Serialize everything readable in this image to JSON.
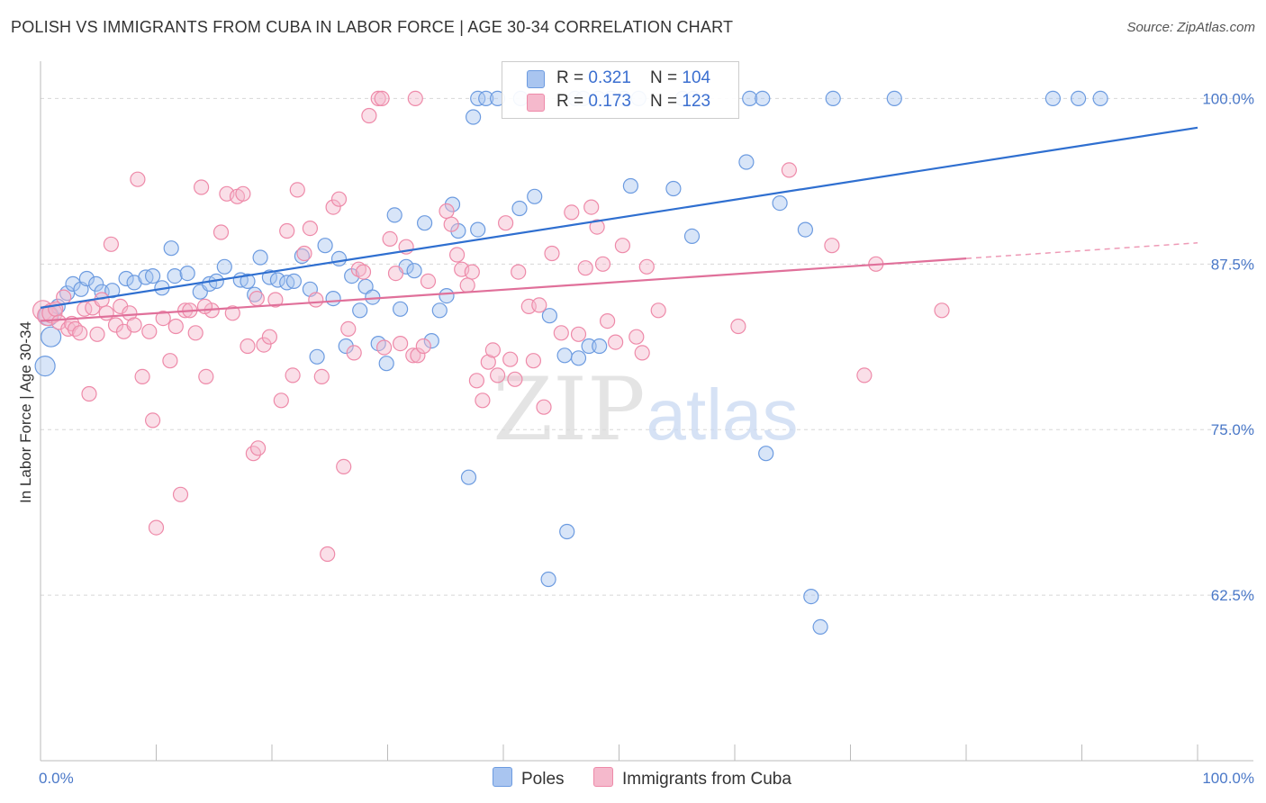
{
  "title": "POLISH VS IMMIGRANTS FROM CUBA IN LABOR FORCE | AGE 30-34 CORRELATION CHART",
  "source": "Source: ZipAtlas.com",
  "watermark": {
    "zip": "ZIP",
    "atlas": "atlas"
  },
  "legend_stats": [
    {
      "r_label": "R = ",
      "r_value": "0.321",
      "n_label": "N = ",
      "n_value": "104"
    },
    {
      "r_label": "R = ",
      "r_value": "0.173",
      "n_label": "N = ",
      "n_value": "123"
    }
  ],
  "chart_data": {
    "type": "scatter",
    "ylabel": "In Labor Force | Age 30-34",
    "xlim": [
      0,
      100
    ],
    "ylim": [
      50,
      102
    ],
    "x_tick_labels": [
      "0.0%",
      "100.0%"
    ],
    "y_ticks": [
      62.5,
      75.0,
      87.5,
      100.0
    ],
    "y_tick_labels": [
      "62.5%",
      "75.0%",
      "87.5%",
      "100.0%"
    ],
    "grid": "horizontal dashed",
    "legend_placement": "top-center",
    "series": [
      {
        "name": "Poles",
        "color": "#6c9be0",
        "fill": "#a9c5f0",
        "trend": {
          "x": [
            0,
            100
          ],
          "y": [
            84.2,
            97.8
          ],
          "dashed_from": null
        },
        "points": [
          [
            0.4,
            79.8
          ],
          [
            0.9,
            82.0
          ],
          [
            0.7,
            83.6
          ],
          [
            1.5,
            84.3
          ],
          [
            2.3,
            85.3
          ],
          [
            2.8,
            86.0
          ],
          [
            3.5,
            85.6
          ],
          [
            4.0,
            86.4
          ],
          [
            4.8,
            86.0
          ],
          [
            5.3,
            85.4
          ],
          [
            6.2,
            85.5
          ],
          [
            7.4,
            86.4
          ],
          [
            8.1,
            86.1
          ],
          [
            9.1,
            86.5
          ],
          [
            9.7,
            86.6
          ],
          [
            10.5,
            85.7
          ],
          [
            11.3,
            88.7
          ],
          [
            11.6,
            86.6
          ],
          [
            12.7,
            86.8
          ],
          [
            13.8,
            85.4
          ],
          [
            14.6,
            86.0
          ],
          [
            15.2,
            86.2
          ],
          [
            15.9,
            87.3
          ],
          [
            17.3,
            86.3
          ],
          [
            17.9,
            86.2
          ],
          [
            18.5,
            85.2
          ],
          [
            19.0,
            88.0
          ],
          [
            19.8,
            86.5
          ],
          [
            20.5,
            86.3
          ],
          [
            21.3,
            86.1
          ],
          [
            21.9,
            86.2
          ],
          [
            22.6,
            88.1
          ],
          [
            23.3,
            85.6
          ],
          [
            23.9,
            80.5
          ],
          [
            24.6,
            88.9
          ],
          [
            25.3,
            84.9
          ],
          [
            25.8,
            87.9
          ],
          [
            26.4,
            81.3
          ],
          [
            26.9,
            86.6
          ],
          [
            27.6,
            84.0
          ],
          [
            28.1,
            85.8
          ],
          [
            28.7,
            85.0
          ],
          [
            29.2,
            81.5
          ],
          [
            29.9,
            80.0
          ],
          [
            30.6,
            91.2
          ],
          [
            31.1,
            84.1
          ],
          [
            31.6,
            87.3
          ],
          [
            32.3,
            87.0
          ],
          [
            33.2,
            90.6
          ],
          [
            33.8,
            81.7
          ],
          [
            34.5,
            84.0
          ],
          [
            35.1,
            85.1
          ],
          [
            35.6,
            92.0
          ],
          [
            36.1,
            90.0
          ],
          [
            37.0,
            71.4
          ],
          [
            37.4,
            98.6
          ],
          [
            37.8,
            100.0
          ],
          [
            38.5,
            100.0
          ],
          [
            41.5,
            100.0
          ],
          [
            46.2,
            100.0
          ],
          [
            46.9,
            100.0
          ],
          [
            48.2,
            100.0
          ],
          [
            49.3,
            100.0
          ],
          [
            50.4,
            100.0
          ],
          [
            51.7,
            100.0
          ],
          [
            55.5,
            100.0
          ],
          [
            56.4,
            100.0
          ],
          [
            61.3,
            100.0
          ],
          [
            62.4,
            100.0
          ],
          [
            68.5,
            100.0
          ],
          [
            73.8,
            100.0
          ],
          [
            87.5,
            100.0
          ],
          [
            89.7,
            100.0
          ],
          [
            91.6,
            100.0
          ],
          [
            37.8,
            90.1
          ],
          [
            41.4,
            91.7
          ],
          [
            42.7,
            92.6
          ],
          [
            44.0,
            83.6
          ],
          [
            45.3,
            80.6
          ],
          [
            46.5,
            80.4
          ],
          [
            47.4,
            81.3
          ],
          [
            48.3,
            81.3
          ],
          [
            51.0,
            93.4
          ],
          [
            54.7,
            93.2
          ],
          [
            56.3,
            89.6
          ],
          [
            61.0,
            95.2
          ],
          [
            62.7,
            73.2
          ],
          [
            63.9,
            92.1
          ],
          [
            66.1,
            90.1
          ],
          [
            66.6,
            62.4
          ],
          [
            67.4,
            60.1
          ],
          [
            43.9,
            63.7
          ],
          [
            45.5,
            67.3
          ],
          [
            39.5,
            100.0
          ]
        ]
      },
      {
        "name": "Immigrants from Cuba",
        "color": "#ee8aa9",
        "fill": "#f5b9cc",
        "trend": {
          "x": [
            0,
            100
          ],
          "y": [
            83.2,
            89.1
          ],
          "dashed_from": 80
        },
        "points": [
          [
            0.2,
            84.0
          ],
          [
            0.6,
            83.6
          ],
          [
            1.0,
            83.8
          ],
          [
            1.3,
            84.1
          ],
          [
            1.6,
            83.1
          ],
          [
            2.0,
            85.0
          ],
          [
            2.4,
            82.6
          ],
          [
            2.7,
            83.0
          ],
          [
            3.0,
            82.6
          ],
          [
            3.4,
            82.3
          ],
          [
            3.8,
            84.1
          ],
          [
            4.2,
            77.7
          ],
          [
            4.5,
            84.2
          ],
          [
            4.9,
            82.2
          ],
          [
            5.3,
            84.8
          ],
          [
            5.7,
            83.8
          ],
          [
            6.1,
            89.0
          ],
          [
            6.5,
            82.9
          ],
          [
            6.9,
            84.3
          ],
          [
            7.2,
            82.4
          ],
          [
            7.7,
            83.8
          ],
          [
            8.1,
            82.9
          ],
          [
            8.4,
            93.9
          ],
          [
            8.8,
            79.0
          ],
          [
            9.4,
            82.4
          ],
          [
            9.7,
            75.7
          ],
          [
            10.0,
            67.6
          ],
          [
            10.6,
            83.4
          ],
          [
            11.2,
            80.2
          ],
          [
            11.7,
            82.8
          ],
          [
            12.1,
            70.1
          ],
          [
            12.5,
            84.0
          ],
          [
            12.9,
            84.0
          ],
          [
            13.4,
            82.3
          ],
          [
            13.9,
            93.3
          ],
          [
            14.3,
            79.0
          ],
          [
            14.8,
            84.0
          ],
          [
            15.6,
            89.9
          ],
          [
            16.1,
            92.8
          ],
          [
            16.6,
            83.8
          ],
          [
            17.0,
            92.6
          ],
          [
            17.5,
            92.8
          ],
          [
            17.9,
            81.3
          ],
          [
            18.4,
            73.2
          ],
          [
            18.8,
            73.6
          ],
          [
            19.3,
            81.4
          ],
          [
            19.8,
            82.0
          ],
          [
            20.3,
            84.8
          ],
          [
            20.8,
            77.2
          ],
          [
            21.3,
            90.0
          ],
          [
            21.8,
            79.1
          ],
          [
            22.2,
            93.1
          ],
          [
            22.8,
            88.3
          ],
          [
            23.3,
            90.2
          ],
          [
            23.8,
            84.8
          ],
          [
            24.3,
            79.0
          ],
          [
            24.8,
            65.6
          ],
          [
            25.3,
            91.8
          ],
          [
            25.8,
            92.4
          ],
          [
            26.2,
            72.2
          ],
          [
            26.6,
            82.6
          ],
          [
            27.1,
            80.8
          ],
          [
            27.5,
            87.1
          ],
          [
            27.9,
            86.9
          ],
          [
            28.4,
            98.7
          ],
          [
            29.2,
            100.0
          ],
          [
            29.7,
            81.2
          ],
          [
            30.2,
            89.4
          ],
          [
            30.7,
            86.8
          ],
          [
            31.1,
            81.5
          ],
          [
            31.6,
            88.8
          ],
          [
            32.2,
            80.6
          ],
          [
            32.6,
            80.6
          ],
          [
            33.1,
            81.3
          ],
          [
            33.5,
            86.2
          ],
          [
            35.1,
            91.5
          ],
          [
            35.5,
            90.5
          ],
          [
            36.0,
            88.2
          ],
          [
            36.4,
            87.1
          ],
          [
            36.9,
            85.9
          ],
          [
            37.3,
            86.9
          ],
          [
            37.7,
            78.7
          ],
          [
            38.2,
            77.2
          ],
          [
            38.7,
            80.1
          ],
          [
            39.1,
            81.0
          ],
          [
            39.5,
            79.1
          ],
          [
            40.2,
            90.6
          ],
          [
            40.6,
            80.3
          ],
          [
            41.0,
            78.8
          ],
          [
            41.3,
            86.9
          ],
          [
            42.2,
            84.3
          ],
          [
            42.6,
            80.2
          ],
          [
            43.1,
            84.4
          ],
          [
            43.5,
            76.7
          ],
          [
            44.2,
            88.3
          ],
          [
            45.0,
            82.3
          ],
          [
            45.9,
            91.4
          ],
          [
            46.5,
            82.2
          ],
          [
            47.1,
            87.2
          ],
          [
            47.6,
            91.8
          ],
          [
            48.1,
            90.3
          ],
          [
            48.6,
            87.5
          ],
          [
            49.0,
            83.2
          ],
          [
            49.7,
            81.6
          ],
          [
            50.3,
            88.9
          ],
          [
            51.5,
            82.0
          ],
          [
            52.0,
            80.8
          ],
          [
            52.4,
            87.3
          ],
          [
            53.4,
            84.0
          ],
          [
            60.3,
            82.8
          ],
          [
            64.7,
            94.6
          ],
          [
            68.4,
            88.9
          ],
          [
            71.2,
            79.1
          ],
          [
            72.2,
            87.5
          ],
          [
            77.9,
            84.0
          ],
          [
            18.7,
            84.9
          ],
          [
            14.2,
            84.3
          ],
          [
            29.5,
            100.0
          ],
          [
            32.4,
            100.0
          ]
        ]
      }
    ]
  }
}
